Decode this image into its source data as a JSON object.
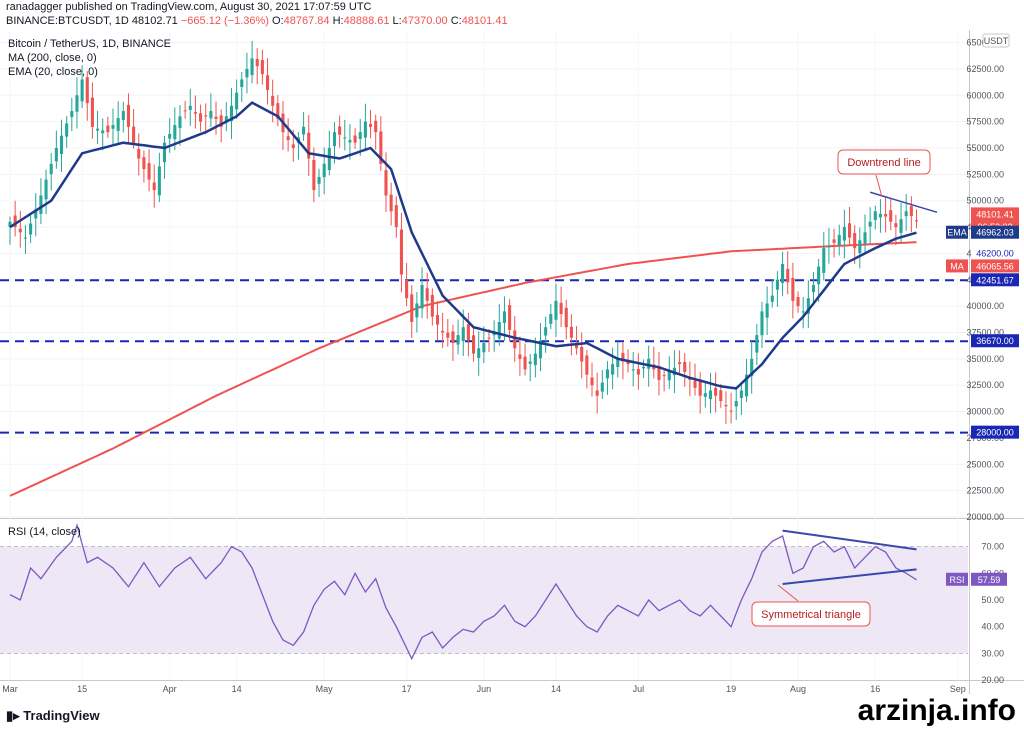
{
  "header": {
    "line1": "ranadagger published on TradingView.com, August 30, 2021 17:07:59 UTC",
    "symbol": "BINANCE:BTCUSDT, 1D",
    "last": "48102.71",
    "change": "−665.12 (−1.36%)",
    "o_label": "O:",
    "o": "48767.84",
    "h_label": "H:",
    "h": "48888.61",
    "l_label": "L:",
    "l": "47370.00",
    "c_label": "C:",
    "c": "48101.41"
  },
  "legend": {
    "title": "Bitcoin / TetherUS, 1D, BINANCE",
    "ma": "MA (200, close, 0)",
    "ema": "EMA (20, close, 0)",
    "rsi": "RSI (14, close)"
  },
  "annotations": {
    "downtrend": "Downtrend line",
    "triangle": "Symmetrical triangle"
  },
  "price_tags": {
    "currency": "USDT",
    "last": "48101.41",
    "countdown": "06:52:03",
    "ema_label": "EMA",
    "ema": "46962.03",
    "l46200": "46200.00",
    "ma_label": "MA",
    "ma": "46065.56",
    "l42451": "42451.67",
    "l36670": "36670.00",
    "l28000": "28000.00",
    "rsi_label": "RSI",
    "rsi": "57.59"
  },
  "footer": {
    "logo": "TradingView",
    "watermark": "arzinja.info"
  },
  "colors": {
    "up": "#26a69a",
    "down": "#ef5350",
    "ema": "#1e3a8a",
    "ma": "#ef5350",
    "level": "#1a27b5",
    "rsi": "#7e57c2",
    "rsi_band": "#ede7f6"
  },
  "chart_data": [
    {
      "type": "candlestick",
      "title": "Bitcoin / TetherUS, 1D, BINANCE",
      "ylim": [
        20000,
        66000
      ],
      "y_ticks": [
        20000,
        22500,
        25000,
        27500,
        30000,
        32500,
        35000,
        37500,
        40000,
        42500,
        45000,
        47500,
        50000,
        52500,
        55000,
        57500,
        60000,
        62500,
        65000
      ],
      "x_ticks": [
        "Mar",
        "15",
        "Apr",
        "14",
        "May",
        "17",
        "Jun",
        "14",
        "Jul",
        "19",
        "Aug",
        "16",
        "Sep"
      ],
      "x_tick_days": [
        0,
        14,
        31,
        44,
        61,
        77,
        92,
        106,
        122,
        140,
        153,
        168,
        184
      ],
      "anchors": [
        [
          0,
          48000
        ],
        [
          3,
          46500
        ],
        [
          6,
          50500
        ],
        [
          9,
          55000
        ],
        [
          12,
          58500
        ],
        [
          14,
          61500
        ],
        [
          16,
          57000
        ],
        [
          19,
          56500
        ],
        [
          22,
          58500
        ],
        [
          25,
          54000
        ],
        [
          28,
          51000
        ],
        [
          30,
          55500
        ],
        [
          33,
          58000
        ],
        [
          35,
          59000
        ],
        [
          37,
          57500
        ],
        [
          39,
          58500
        ],
        [
          41,
          57000
        ],
        [
          43,
          59000
        ],
        [
          45,
          61500
        ],
        [
          47,
          63500
        ],
        [
          49,
          62000
        ],
        [
          51,
          59000
        ],
        [
          53,
          56500
        ],
        [
          55,
          55000
        ],
        [
          57,
          57000
        ],
        [
          59,
          51000
        ],
        [
          61,
          53500
        ],
        [
          63,
          56500
        ],
        [
          65,
          56000
        ],
        [
          67,
          55500
        ],
        [
          69,
          57500
        ],
        [
          71,
          56500
        ],
        [
          73,
          50500
        ],
        [
          75,
          47500
        ],
        [
          76,
          43000
        ],
        [
          78,
          38500
        ],
        [
          80,
          42000
        ],
        [
          82,
          39000
        ],
        [
          84,
          37500
        ],
        [
          86,
          36500
        ],
        [
          88,
          38000
        ],
        [
          90,
          35500
        ],
        [
          92,
          36500
        ],
        [
          94,
          37500
        ],
        [
          96,
          39500
        ],
        [
          98,
          36000
        ],
        [
          100,
          34000
        ],
        [
          102,
          35500
        ],
        [
          104,
          38000
        ],
        [
          106,
          40500
        ],
        [
          108,
          38000
        ],
        [
          110,
          36000
        ],
        [
          112,
          33500
        ],
        [
          114,
          31500
        ],
        [
          116,
          34000
        ],
        [
          118,
          35000
        ],
        [
          120,
          34500
        ],
        [
          122,
          33500
        ],
        [
          124,
          35000
        ],
        [
          126,
          33000
        ],
        [
          128,
          33800
        ],
        [
          130,
          34500
        ],
        [
          132,
          33000
        ],
        [
          134,
          31500
        ],
        [
          136,
          32000
        ],
        [
          138,
          31000
        ],
        [
          140,
          30000
        ],
        [
          142,
          32000
        ],
        [
          144,
          35000
        ],
        [
          146,
          39500
        ],
        [
          148,
          41000
        ],
        [
          150,
          44000
        ],
        [
          152,
          40500
        ],
        [
          154,
          39500
        ],
        [
          156,
          42000
        ],
        [
          158,
          45500
        ],
        [
          160,
          46000
        ],
        [
          162,
          47500
        ],
        [
          164,
          45500
        ],
        [
          166,
          47000
        ],
        [
          168,
          49000
        ],
        [
          170,
          48500
        ],
        [
          172,
          47500
        ],
        [
          174,
          49000
        ],
        [
          176,
          48100
        ]
      ],
      "ema20_anchors": [
        [
          0,
          47500
        ],
        [
          8,
          50000
        ],
        [
          14,
          54500
        ],
        [
          22,
          55500
        ],
        [
          30,
          55000
        ],
        [
          38,
          56500
        ],
        [
          44,
          58000
        ],
        [
          47,
          59300
        ],
        [
          52,
          58000
        ],
        [
          58,
          54500
        ],
        [
          64,
          54000
        ],
        [
          70,
          55000
        ],
        [
          74,
          53000
        ],
        [
          78,
          47000
        ],
        [
          84,
          41000
        ],
        [
          90,
          38000
        ],
        [
          98,
          37000
        ],
        [
          106,
          36200
        ],
        [
          112,
          36500
        ],
        [
          118,
          35000
        ],
        [
          126,
          34200
        ],
        [
          132,
          33200
        ],
        [
          138,
          32400
        ],
        [
          141,
          32200
        ],
        [
          146,
          34500
        ],
        [
          150,
          37000
        ],
        [
          154,
          39000
        ],
        [
          158,
          41500
        ],
        [
          162,
          44000
        ],
        [
          168,
          45500
        ],
        [
          172,
          46400
        ],
        [
          176,
          46962
        ]
      ],
      "ma200_anchors": [
        [
          0,
          22000
        ],
        [
          20,
          26500
        ],
        [
          40,
          31500
        ],
        [
          60,
          36000
        ],
        [
          80,
          40000
        ],
        [
          100,
          42200
        ],
        [
          120,
          44000
        ],
        [
          140,
          45200
        ],
        [
          160,
          45700
        ],
        [
          176,
          46065
        ]
      ],
      "levels": [
        42451.67,
        36670.0,
        28000.0
      ],
      "downtrend_line": [
        [
          167,
          50800
        ],
        [
          180,
          48900
        ]
      ]
    },
    {
      "type": "line",
      "title": "RSI (14, close)",
      "ylim": [
        20,
        80
      ],
      "y_ticks": [
        20,
        30,
        40,
        50,
        60,
        70
      ],
      "bands": [
        30,
        70
      ],
      "midline": 50,
      "last": 57.59,
      "anchors": [
        [
          0,
          52
        ],
        [
          2,
          50
        ],
        [
          4,
          62
        ],
        [
          6,
          58
        ],
        [
          9,
          66
        ],
        [
          12,
          72
        ],
        [
          13,
          78
        ],
        [
          15,
          64
        ],
        [
          17,
          66
        ],
        [
          20,
          62
        ],
        [
          23,
          55
        ],
        [
          26,
          64
        ],
        [
          29,
          55
        ],
        [
          32,
          62
        ],
        [
          35,
          66
        ],
        [
          38,
          58
        ],
        [
          41,
          64
        ],
        [
          43,
          70
        ],
        [
          45,
          68
        ],
        [
          47,
          62
        ],
        [
          49,
          52
        ],
        [
          51,
          42
        ],
        [
          53,
          35
        ],
        [
          55,
          33
        ],
        [
          57,
          38
        ],
        [
          59,
          48
        ],
        [
          61,
          54
        ],
        [
          63,
          57
        ],
        [
          65,
          52
        ],
        [
          67,
          60
        ],
        [
          69,
          53
        ],
        [
          71,
          58
        ],
        [
          73,
          47
        ],
        [
          75,
          40
        ],
        [
          77,
          32
        ],
        [
          78,
          28
        ],
        [
          80,
          36
        ],
        [
          82,
          38
        ],
        [
          84,
          32
        ],
        [
          86,
          36
        ],
        [
          88,
          39
        ],
        [
          90,
          38
        ],
        [
          92,
          42
        ],
        [
          94,
          44
        ],
        [
          96,
          48
        ],
        [
          98,
          42
        ],
        [
          100,
          40
        ],
        [
          102,
          44
        ],
        [
          104,
          50
        ],
        [
          106,
          56
        ],
        [
          108,
          50
        ],
        [
          110,
          44
        ],
        [
          112,
          40
        ],
        [
          114,
          38
        ],
        [
          116,
          44
        ],
        [
          118,
          48
        ],
        [
          120,
          46
        ],
        [
          122,
          44
        ],
        [
          124,
          50
        ],
        [
          126,
          46
        ],
        [
          128,
          48
        ],
        [
          130,
          50
        ],
        [
          132,
          46
        ],
        [
          134,
          44
        ],
        [
          136,
          48
        ],
        [
          138,
          44
        ],
        [
          140,
          40
        ],
        [
          142,
          50
        ],
        [
          144,
          58
        ],
        [
          146,
          68
        ],
        [
          148,
          72
        ],
        [
          150,
          74
        ],
        [
          152,
          60
        ],
        [
          154,
          62
        ],
        [
          156,
          70
        ],
        [
          158,
          72
        ],
        [
          160,
          68
        ],
        [
          162,
          70
        ],
        [
          164,
          62
        ],
        [
          166,
          66
        ],
        [
          168,
          70
        ],
        [
          170,
          68
        ],
        [
          172,
          62
        ],
        [
          174,
          60
        ],
        [
          176,
          57.59
        ]
      ],
      "upper_line": [
        [
          150,
          76
        ],
        [
          176,
          69
        ]
      ],
      "lower_line": [
        [
          150,
          56
        ],
        [
          176,
          61.5
        ]
      ]
    }
  ]
}
